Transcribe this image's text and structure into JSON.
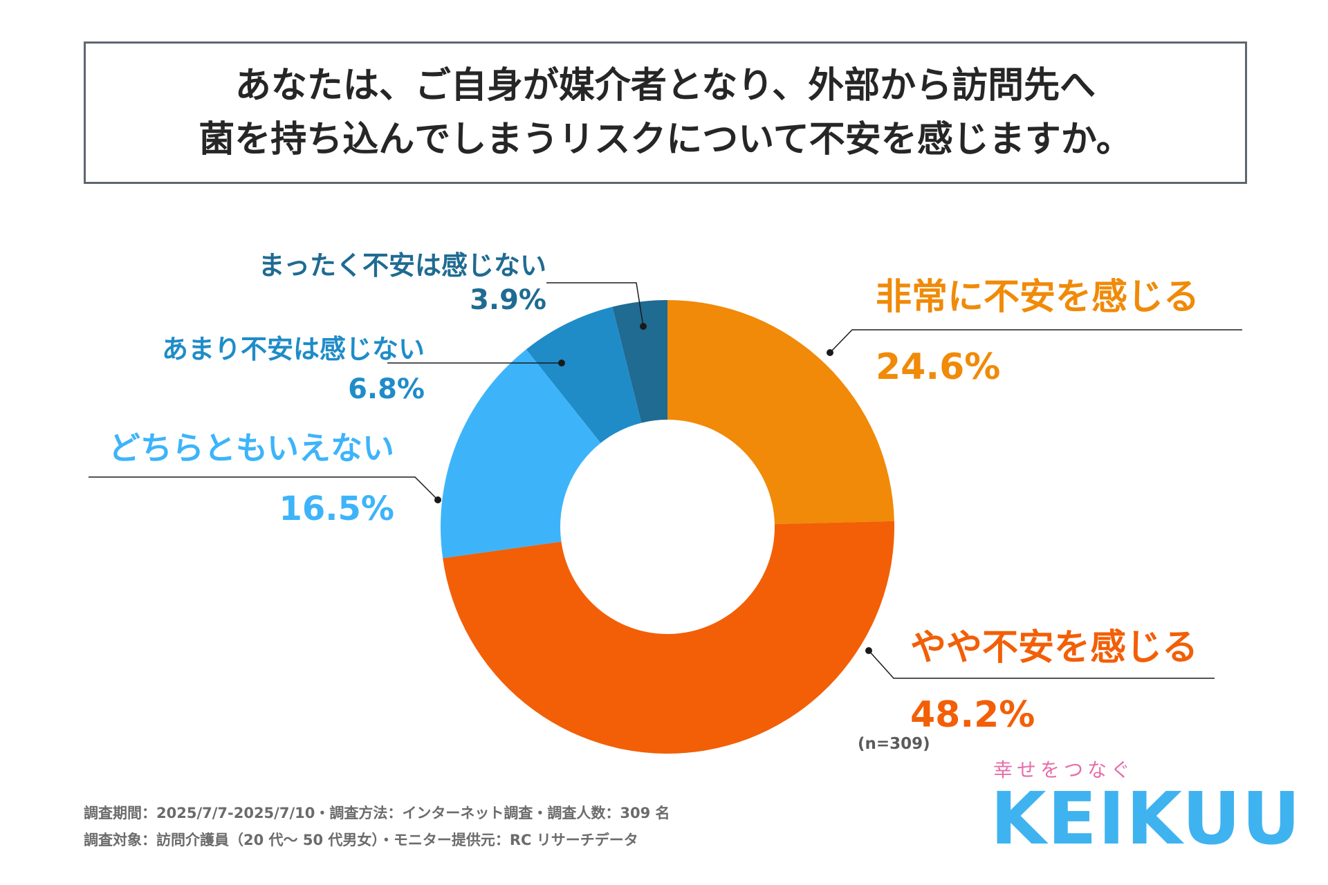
{
  "title": {
    "line1": "あなたは、ご自身が媒介者となり、外部から訪問先へ",
    "line2": "菌を持ち込んでしまうリスクについて不安を感じますか。"
  },
  "chart_data": {
    "type": "pie",
    "donut": true,
    "start": "12 o'clock, clockwise",
    "slices": [
      {
        "label": "非常に不安を感じる",
        "value": 24.6,
        "value_label": "24.6%",
        "color": "#f08a08"
      },
      {
        "label": "やや不安を感じる",
        "value": 48.2,
        "value_label": "48.2%",
        "color": "#f25f07"
      },
      {
        "label": "どちらともいえない",
        "value": 16.5,
        "value_label": "16.5%",
        "color": "#3db4fa"
      },
      {
        "label": "あまり不安は感じない",
        "value": 6.8,
        "value_label": "6.8%",
        "color": "#1f8cc8"
      },
      {
        "label": "まったく不安は感じない",
        "value": 3.9,
        "value_label": "3.9%",
        "color": "#1f6b92"
      }
    ],
    "sample_note": "(n=309)"
  },
  "footer": {
    "line1": "調査期間：2025/7/7-2025/7/10・調査方法：インターネット調査・調査人数：309 名",
    "line2": "調査対象：訪問介護員（20 代〜 50 代男女）・モニター提供元：RC リサーチデータ"
  },
  "brand": {
    "tagline": "幸せをつなぐ",
    "logo": "KEIKUU"
  }
}
